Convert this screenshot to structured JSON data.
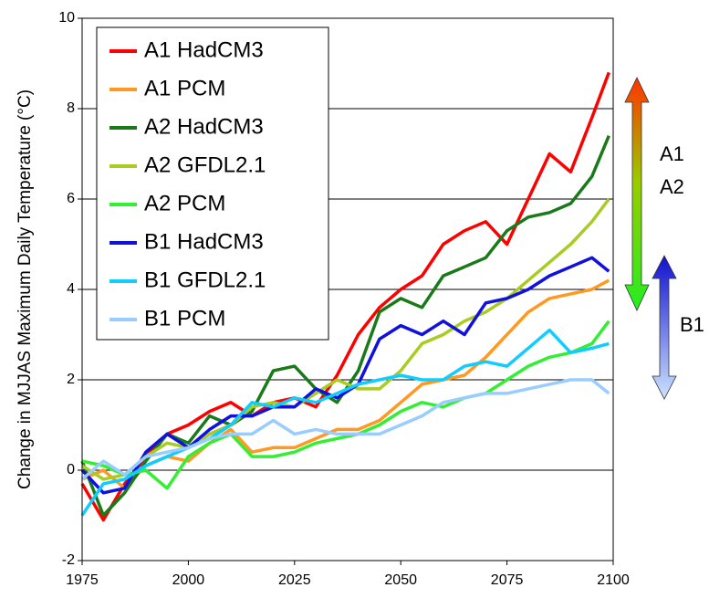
{
  "chart_data": {
    "type": "line",
    "y_label": "Change in MJJAS Maximum Daily Temperature (°C)",
    "x": [
      1975,
      1980,
      1985,
      1990,
      1995,
      2000,
      2005,
      2010,
      2015,
      2020,
      2025,
      2030,
      2035,
      2040,
      2045,
      2050,
      2055,
      2060,
      2065,
      2070,
      2075,
      2080,
      2085,
      2090,
      2095,
      2099
    ],
    "series": [
      {
        "name": "A1 HadCM3",
        "color": "#ff0000",
        "values": [
          -0.3,
          -1.1,
          -0.3,
          0.3,
          0.8,
          1.0,
          1.3,
          1.5,
          1.2,
          1.5,
          1.6,
          1.4,
          2.1,
          3.0,
          3.6,
          4.0,
          4.3,
          5.0,
          5.3,
          5.5,
          5.0,
          6.0,
          7.0,
          6.6,
          7.8,
          8.8
        ]
      },
      {
        "name": "A1 PCM",
        "color": "#ff9922",
        "values": [
          -0.2,
          0.0,
          -0.4,
          0.1,
          0.3,
          0.2,
          0.6,
          0.9,
          0.4,
          0.5,
          0.5,
          0.7,
          0.9,
          0.9,
          1.1,
          1.5,
          1.9,
          2.0,
          2.1,
          2.5,
          3.0,
          3.5,
          3.8,
          3.9,
          4.0,
          4.2
        ]
      },
      {
        "name": "A2 HadCM3",
        "color": "#1a7a1a",
        "values": [
          0.2,
          -1.0,
          -0.5,
          0.2,
          0.8,
          0.6,
          1.2,
          1.0,
          1.3,
          2.2,
          2.3,
          1.8,
          1.5,
          2.2,
          3.5,
          3.8,
          3.6,
          4.3,
          4.5,
          4.7,
          5.3,
          5.6,
          5.7,
          5.9,
          6.5,
          7.4
        ]
      },
      {
        "name": "A2 GFDL2.1",
        "color": "#a8cc22",
        "values": [
          0.1,
          -0.2,
          -0.1,
          0.3,
          0.6,
          0.5,
          0.8,
          1.0,
          1.4,
          1.5,
          1.4,
          1.7,
          2.0,
          1.8,
          1.8,
          2.2,
          2.8,
          3.0,
          3.3,
          3.5,
          3.8,
          4.2,
          4.6,
          5.0,
          5.5,
          6.0
        ]
      },
      {
        "name": "A2 PCM",
        "color": "#33ee33",
        "values": [
          0.2,
          0.1,
          -0.1,
          0.0,
          -0.4,
          0.3,
          0.6,
          0.8,
          0.3,
          0.3,
          0.4,
          0.6,
          0.7,
          0.8,
          1.0,
          1.3,
          1.5,
          1.4,
          1.6,
          1.7,
          2.0,
          2.3,
          2.5,
          2.6,
          2.8,
          3.3
        ]
      },
      {
        "name": "B1 HadCM3",
        "color": "#1111dd",
        "values": [
          0.0,
          -0.5,
          -0.4,
          0.4,
          0.8,
          0.5,
          0.9,
          1.2,
          1.2,
          1.4,
          1.4,
          1.8,
          1.6,
          1.9,
          2.9,
          3.2,
          3.0,
          3.3,
          3.0,
          3.7,
          3.8,
          4.0,
          4.3,
          4.5,
          4.7,
          4.4
        ]
      },
      {
        "name": "B1 GFDL2.1",
        "color": "#11ccff",
        "values": [
          -1.0,
          -0.3,
          -0.2,
          0.1,
          0.3,
          0.5,
          0.7,
          1.0,
          1.5,
          1.4,
          1.6,
          1.5,
          1.7,
          1.9,
          2.0,
          2.1,
          2.0,
          2.0,
          2.3,
          2.4,
          2.3,
          2.7,
          3.1,
          2.6,
          2.7,
          2.8
        ]
      },
      {
        "name": "B1 PCM",
        "color": "#99ccff",
        "values": [
          -0.2,
          0.2,
          -0.1,
          0.3,
          0.4,
          0.5,
          0.7,
          0.8,
          0.8,
          1.1,
          0.8,
          0.9,
          0.8,
          0.8,
          0.8,
          1.0,
          1.2,
          1.5,
          1.6,
          1.7,
          1.7,
          1.8,
          1.9,
          2.0,
          2.0,
          1.7
        ]
      }
    ],
    "xlim": [
      1975,
      2100
    ],
    "xticks": [
      1975,
      2000,
      2025,
      2050,
      2075,
      2100
    ],
    "ylim": [
      -2,
      10
    ],
    "yticks": [
      -2,
      0,
      2,
      4,
      6,
      8,
      10
    ],
    "grid": true,
    "legend": "upper left",
    "annotations": [
      "A1",
      "A2",
      "B1"
    ]
  }
}
